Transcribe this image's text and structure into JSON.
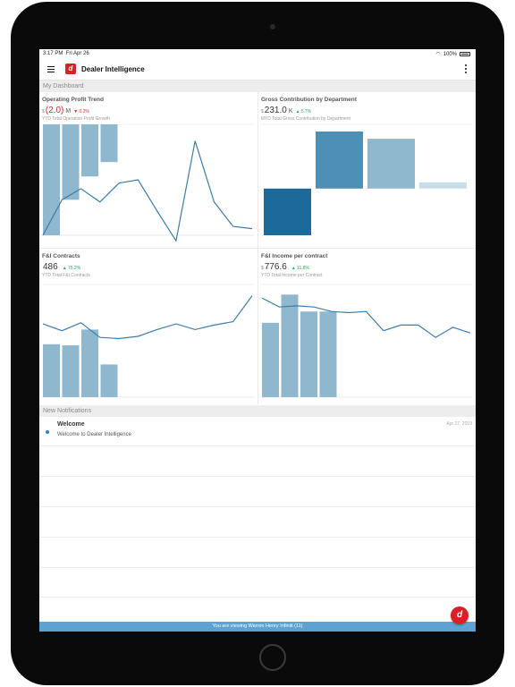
{
  "status_bar": {
    "time": "3:17 PM",
    "date": "Fri Apr 26",
    "battery": "100%"
  },
  "header": {
    "logo_letter": "d",
    "title": "Dealer Intelligence"
  },
  "dashboard": {
    "section_title": "My Dashboard",
    "tiles": [
      {
        "title": "Operating Profit Trend",
        "currency": "$",
        "value": "(2.0)",
        "unit": "M",
        "delta": "▼ 0.2%",
        "subtitle": "YTD Total Operation Profit Growth",
        "chart_data": {
          "type": "bar+line",
          "bars": [
            -1.0,
            -0.68,
            -0.47,
            -0.34
          ],
          "line": [
            0.0,
            0.32,
            0.42,
            0.3,
            0.47,
            0.5,
            0.22,
            -0.05,
            0.85,
            0.3,
            0.08,
            0.06
          ]
        }
      },
      {
        "title": "Gross Contribution by Department",
        "currency": "$",
        "value": "231.0",
        "unit": "K",
        "delta": "▲ 5.7%",
        "subtitle": "MTD Total Gross Contribution by Department",
        "chart_data": {
          "type": "waterfall",
          "start": [
            0,
            0.45
          ],
          "steps": [
            [
              0.45,
              1.0
            ],
            [
              0.45,
              0.93
            ],
            [
              0.45,
              0.51
            ]
          ]
        }
      },
      {
        "title": "F&I Contracts",
        "currency": "",
        "value": "486",
        "unit": "",
        "delta": "▲ 75.2%",
        "subtitle": "YTD Total F&I Contracts",
        "chart_data": {
          "type": "bar+line",
          "bars": [
            0.47,
            0.46,
            0.6,
            0.29
          ],
          "line": [
            0.65,
            0.59,
            0.66,
            0.53,
            0.52,
            0.54,
            0.6,
            0.65,
            0.6,
            0.64,
            0.67,
            0.9
          ]
        }
      },
      {
        "title": "F&I Income per contract",
        "currency": "$",
        "value": "776.6",
        "unit": "",
        "delta": "▲ 11.8%",
        "subtitle": "YTD Total Income per Contract",
        "chart_data": {
          "type": "bar+line",
          "bars": [
            0.66,
            0.91,
            0.76,
            0.76
          ],
          "line": [
            0.88,
            0.8,
            0.81,
            0.8,
            0.76,
            0.75,
            0.76,
            0.59,
            0.64,
            0.64,
            0.53,
            0.62,
            0.57
          ]
        }
      }
    ]
  },
  "notifications": {
    "section_title": "New Notifications",
    "items": [
      {
        "title": "Welcome",
        "date": "Apr 17, 2019",
        "text": "Welcome to Dealer Intelligence"
      }
    ]
  },
  "footer": {
    "banner": "You are viewing Warren Henry Infiniti (11)"
  },
  "colors": {
    "accent": "#d92027",
    "bar": "#8fb8cf",
    "line": "#3e7da8",
    "dark_bar": "#1c6a9a",
    "mid_bar": "#4d8fb7",
    "banner": "#5da2d1"
  }
}
